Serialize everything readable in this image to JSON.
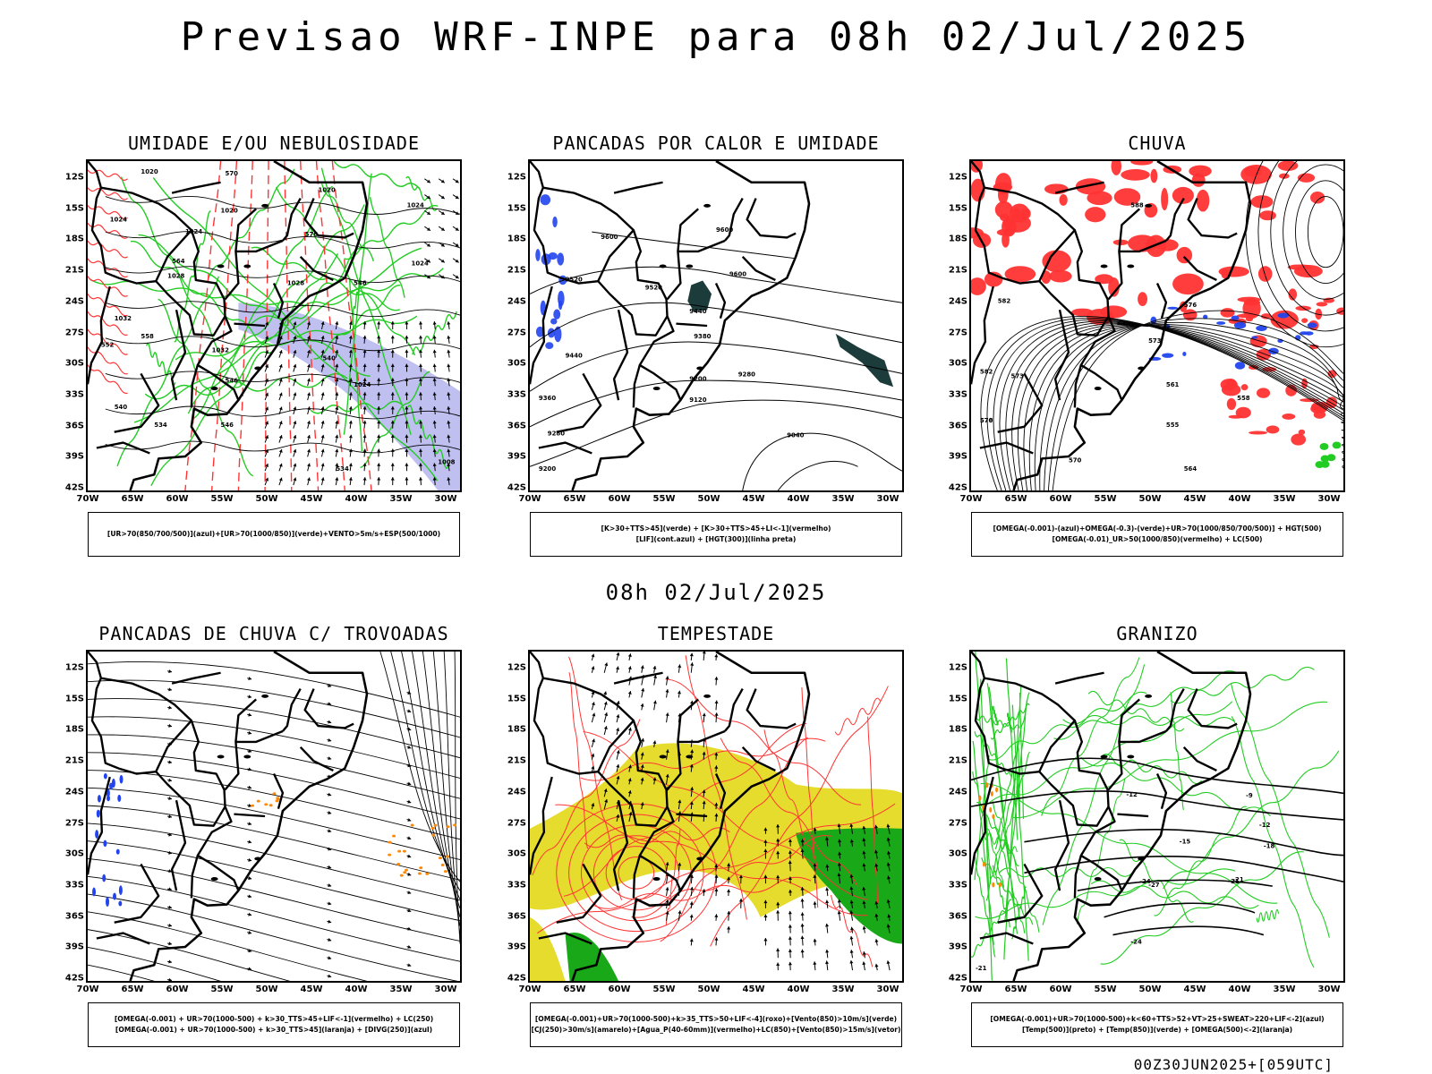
{
  "page": {
    "title": "Previsao WRF-INPE  para 08h 02/Jul/2025",
    "mid_title": "08h 02/Jul/2025",
    "footer": "00Z30JUN2025+[059UTC]"
  },
  "axes": {
    "lat_labels": [
      "12S",
      "15S",
      "18S",
      "21S",
      "24S",
      "27S",
      "30S",
      "33S",
      "36S",
      "39S",
      "42S"
    ],
    "lon_labels": [
      "70W",
      "65W",
      "60W",
      "55W",
      "50W",
      "45W",
      "40W",
      "35W",
      "30W"
    ]
  },
  "panels": [
    {
      "title": "UMIDADE E/OU NEBULOSIDADE",
      "legend": [
        "[UR>70(850/700/500)](azul)+[UR>70(1000/850)](verde)+VENTO>5m/s+ESP(500/1000)"
      ],
      "contour_labels": [
        "1020",
        "1020",
        "1024",
        "1024",
        "1024",
        "1028",
        "1032",
        "1032",
        "1028",
        "1024",
        "1024",
        "1008",
        "1020",
        "570",
        "576",
        "564",
        "558",
        "552",
        "546",
        "540",
        "534",
        "546",
        "534",
        "540",
        "546"
      ]
    },
    {
      "title": "PANCADAS POR CALOR E UMIDADE",
      "legend": [
        "[K>30+TTS>45](verde) + [K>30+TTS>45+LI<-1](vermelho)",
        "[LIF](cont.azul) + [HGT(300)](linha preta)"
      ],
      "contour_labels": [
        "9600",
        "9600",
        "9520",
        "9520",
        "9440",
        "9440",
        "9380",
        "9360",
        "9280",
        "9280",
        "9200",
        "9200",
        "9120",
        "9040",
        "9600"
      ]
    },
    {
      "title": "CHUVA",
      "legend": [
        "[OMEGA(-0.001)-(azul)+OMEGA(-0.3)-(verde)+UR>70(1000/850/700/500)] + HGT(500)",
        "[OMEGA(-0.01)_UR>50(1000/850)(vermelho) + LC(500)"
      ],
      "contour_labels": [
        "582",
        "582",
        "576",
        "573",
        "570",
        "570",
        "564",
        "561",
        "558",
        "555",
        "573",
        "576",
        "588"
      ]
    },
    {
      "title": "PANCADAS DE CHUVA C/ TROVOADAS",
      "legend": [
        "[OMEGA(-0.001) + UR>70(1000-500) + k>30_TTS>45+LIF<-1](vermelho) + LC(250)",
        "[OMEGA(-0.001) + UR>70(1000-500) + k>30_TTS>45](laranja) + [DIVG(250)](azul)"
      ],
      "contour_labels": []
    },
    {
      "title": "TEMPESTADE",
      "legend": [
        "[OMEGA(-0.001)+UR>70(1000-500)+k>35_TTS>50+LIF<-4](roxo)+[Vento(850)>10m/s](verde)",
        "[CJ(250)>30m/s](amarelo)+[Agua_P(40-60mm)](vermelho)+LC(850)+[Vento(850)>15m/s](vetor)"
      ],
      "contour_labels": []
    },
    {
      "title": "GRANIZO",
      "legend": [
        "[OMEGA(-0.001)+UR>70(1000-500)+k<60+TTS>52+VT>25+SWEAT>220+LIF<-2](azul)",
        "[Temp(500)](preto) + [Temp(850)](verde) + [OMEGA(500)<-2](laranja)"
      ],
      "contour_labels": [
        "-12",
        "-9",
        "-12",
        "-15",
        "-18",
        "-21",
        "-24",
        "-27",
        "-21",
        "-24",
        "-21"
      ]
    }
  ],
  "colors": {
    "red": "#ff3333",
    "green": "#22cc22",
    "blue": "#2244ee",
    "lavender": "#b8b8ee",
    "yellow": "#e6dc2e",
    "dark_green": "#18a818",
    "orange": "#ff8800",
    "dark_teal": "#1c3c3c"
  }
}
